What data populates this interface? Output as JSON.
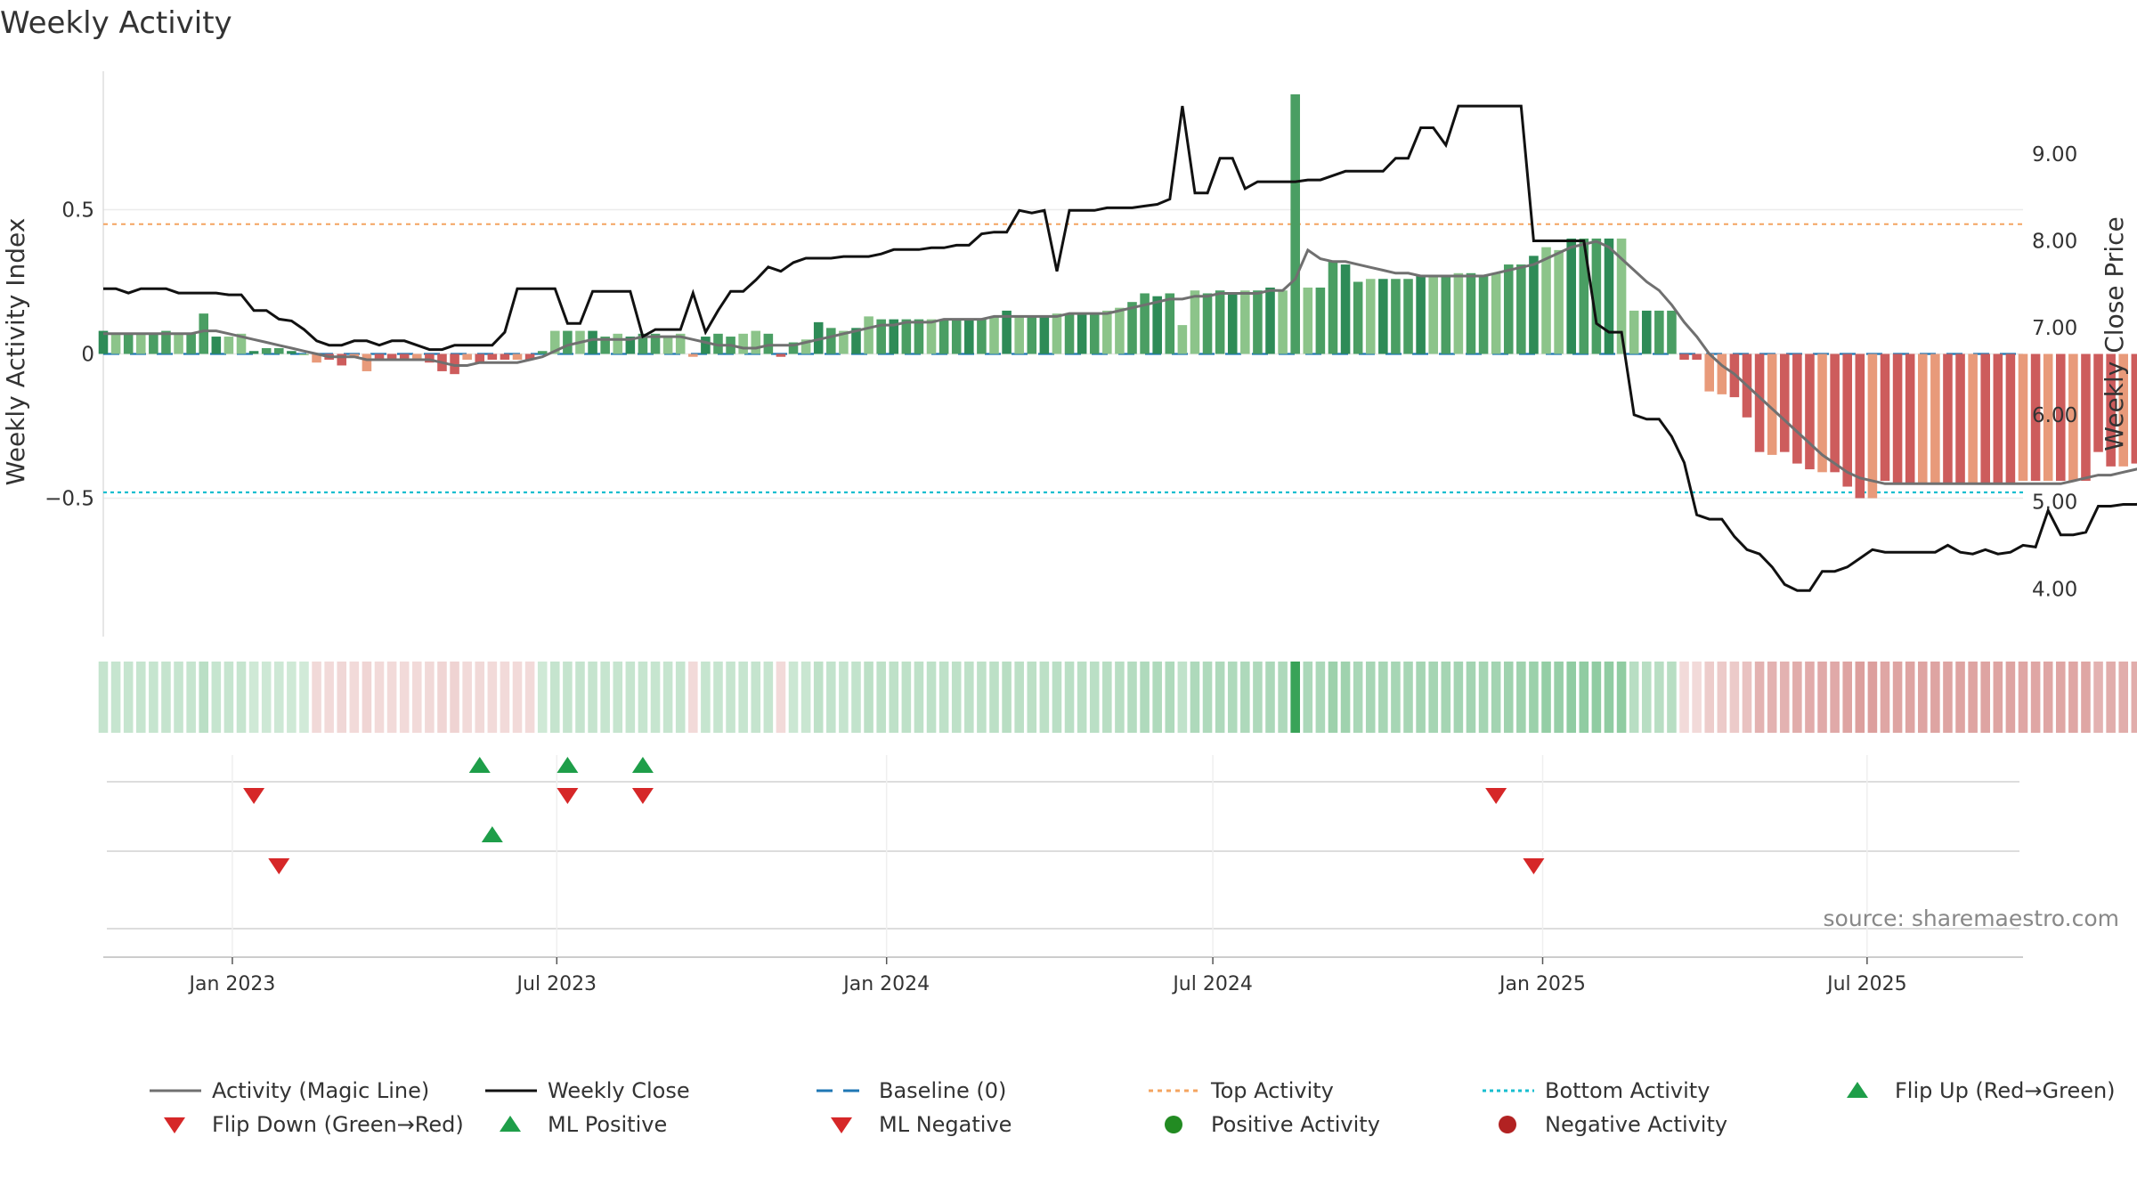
{
  "chart_data": {
    "type": "bar",
    "title": "Weekly Activity",
    "ylabel_left": "Weekly Activity Index",
    "ylabel_right": "Weekly Close Price",
    "source": "source: sharemaestro.com",
    "x_range": [
      "2022-10-21",
      "2025-09-26"
    ],
    "ylim_left": [
      -0.98,
      0.98
    ],
    "ylim_right": [
      3.45,
      9.95
    ],
    "left_ticks": [
      {
        "v": 0.5,
        "label": "0.5"
      },
      {
        "v": 0,
        "label": "0"
      },
      {
        "v": -0.5,
        "label": "−0.5"
      }
    ],
    "right_ticks": [
      {
        "v": 9,
        "label": "9.00"
      },
      {
        "v": 8,
        "label": "8.00"
      },
      {
        "v": 7,
        "label": "7.00"
      },
      {
        "v": 6,
        "label": "6.00"
      },
      {
        "v": 5,
        "label": "5.00"
      },
      {
        "v": 4,
        "label": "4.00"
      }
    ],
    "x_ticks": [
      {
        "date": "2023-01-01",
        "label": "Jan 2023"
      },
      {
        "date": "2023-07-01",
        "label": "Jul 2023"
      },
      {
        "date": "2024-01-01",
        "label": "Jan 2024"
      },
      {
        "date": "2024-07-01",
        "label": "Jul 2024"
      },
      {
        "date": "2025-01-01",
        "label": "Jan 2025"
      },
      {
        "date": "2025-07-01",
        "label": "Jul 2025"
      }
    ],
    "top_activity": 0.45,
    "bottom_activity": -0.48,
    "baseline": 0,
    "colors": {
      "pos_dark": "#2e8b57",
      "pos_mid": "#4a9e63",
      "pos_light": "#8cc48a",
      "neg_dark": "#cd5c5c",
      "neg_light": "#e89a7a",
      "magic_line": "#707070",
      "close": "#111111",
      "baseline": "#1f77b4",
      "top": "#f4a460",
      "bottom": "#17becf",
      "marker_up": "#1e9e49",
      "marker_down": "#d62728",
      "neg_activity": "#b22222",
      "pos_activity": "#228b22"
    },
    "start_date": "2022-10-21",
    "activity": [
      0.08,
      0.07,
      0.07,
      0.07,
      0.07,
      0.08,
      0.07,
      0.07,
      0.14,
      0.06,
      0.06,
      0.07,
      0.01,
      0.02,
      0.02,
      0.01,
      0.0,
      -0.03,
      -0.02,
      -0.04,
      -0.01,
      -0.06,
      -0.02,
      -0.02,
      -0.02,
      -0.02,
      -0.03,
      -0.06,
      -0.07,
      -0.02,
      -0.03,
      -0.02,
      -0.02,
      -0.02,
      -0.02,
      0.01,
      0.08,
      0.08,
      0.08,
      0.08,
      0.06,
      0.07,
      0.06,
      0.07,
      0.07,
      0.06,
      0.07,
      -0.01,
      0.06,
      0.07,
      0.06,
      0.07,
      0.08,
      0.07,
      -0.01,
      0.04,
      0.05,
      0.11,
      0.09,
      0.08,
      0.09,
      0.13,
      0.12,
      0.12,
      0.12,
      0.12,
      0.12,
      0.12,
      0.12,
      0.12,
      0.12,
      0.13,
      0.15,
      0.13,
      0.13,
      0.13,
      0.14,
      0.14,
      0.14,
      0.14,
      0.15,
      0.16,
      0.18,
      0.21,
      0.2,
      0.21,
      0.1,
      0.22,
      0.21,
      0.22,
      0.21,
      0.22,
      0.22,
      0.23,
      0.22,
      0.9,
      0.23,
      0.23,
      0.32,
      0.31,
      0.25,
      0.26,
      0.26,
      0.26,
      0.26,
      0.27,
      0.27,
      0.27,
      0.28,
      0.28,
      0.27,
      0.28,
      0.31,
      0.31,
      0.34,
      0.37,
      0.36,
      0.4,
      0.4,
      0.4,
      0.4,
      0.4,
      0.15,
      0.15,
      0.15,
      0.15,
      -0.02,
      -0.02,
      -0.13,
      -0.14,
      -0.15,
      -0.22,
      -0.34,
      -0.35,
      -0.34,
      -0.38,
      -0.4,
      -0.41,
      -0.41,
      -0.46,
      -0.5,
      -0.5,
      -0.44,
      -0.45,
      -0.45,
      -0.45,
      -0.45,
      -0.45,
      -0.45,
      -0.45,
      -0.45,
      -0.45,
      -0.45,
      -0.44,
      -0.44,
      -0.44,
      -0.44,
      -0.44,
      -0.44,
      -0.34,
      -0.39,
      -0.39,
      -0.38,
      -0.37,
      -0.36,
      -0.35,
      -0.34,
      -0.33,
      -0.32,
      -0.32
    ],
    "magic_line": [
      0.07,
      0.07,
      0.07,
      0.07,
      0.07,
      0.07,
      0.07,
      0.07,
      0.08,
      0.08,
      0.07,
      0.06,
      0.05,
      0.04,
      0.03,
      0.02,
      0.01,
      0.0,
      -0.01,
      -0.01,
      -0.01,
      -0.02,
      -0.02,
      -0.02,
      -0.02,
      -0.02,
      -0.02,
      -0.03,
      -0.04,
      -0.04,
      -0.03,
      -0.03,
      -0.03,
      -0.03,
      -0.02,
      -0.01,
      0.01,
      0.03,
      0.04,
      0.05,
      0.05,
      0.05,
      0.05,
      0.06,
      0.06,
      0.06,
      0.06,
      0.05,
      0.04,
      0.03,
      0.03,
      0.02,
      0.02,
      0.03,
      0.03,
      0.03,
      0.04,
      0.05,
      0.06,
      0.07,
      0.08,
      0.09,
      0.1,
      0.1,
      0.11,
      0.11,
      0.11,
      0.12,
      0.12,
      0.12,
      0.12,
      0.13,
      0.13,
      0.13,
      0.13,
      0.13,
      0.13,
      0.14,
      0.14,
      0.14,
      0.14,
      0.15,
      0.16,
      0.17,
      0.18,
      0.19,
      0.19,
      0.2,
      0.2,
      0.21,
      0.21,
      0.21,
      0.21,
      0.22,
      0.22,
      0.26,
      0.36,
      0.33,
      0.32,
      0.32,
      0.31,
      0.3,
      0.29,
      0.28,
      0.28,
      0.27,
      0.27,
      0.27,
      0.27,
      0.27,
      0.27,
      0.28,
      0.29,
      0.3,
      0.31,
      0.33,
      0.35,
      0.37,
      0.38,
      0.39,
      0.37,
      0.33,
      0.29,
      0.25,
      0.22,
      0.17,
      0.11,
      0.06,
      0.0,
      -0.04,
      -0.07,
      -0.11,
      -0.15,
      -0.19,
      -0.23,
      -0.27,
      -0.31,
      -0.35,
      -0.38,
      -0.41,
      -0.43,
      -0.44,
      -0.45,
      -0.45,
      -0.45,
      -0.45,
      -0.45,
      -0.45,
      -0.45,
      -0.45,
      -0.45,
      -0.45,
      -0.45,
      -0.45,
      -0.45,
      -0.45,
      -0.45,
      -0.44,
      -0.43,
      -0.42,
      -0.42,
      -0.41,
      -0.4,
      -0.39,
      -0.38,
      -0.37,
      -0.36,
      -0.35,
      -0.34,
      -0.33
    ],
    "close": [
      7.45,
      7.45,
      7.4,
      7.45,
      7.45,
      7.45,
      7.4,
      7.4,
      7.4,
      7.4,
      7.38,
      7.38,
      7.2,
      7.2,
      7.1,
      7.08,
      6.98,
      6.85,
      6.8,
      6.8,
      6.85,
      6.85,
      6.8,
      6.85,
      6.85,
      6.8,
      6.75,
      6.75,
      6.8,
      6.8,
      6.8,
      6.8,
      6.95,
      7.45,
      7.45,
      7.45,
      7.45,
      7.05,
      7.05,
      7.42,
      7.42,
      7.42,
      7.42,
      6.9,
      6.98,
      6.98,
      6.98,
      7.4,
      6.95,
      7.2,
      7.42,
      7.42,
      7.55,
      7.7,
      7.65,
      7.75,
      7.8,
      7.8,
      7.8,
      7.82,
      7.82,
      7.82,
      7.85,
      7.9,
      7.9,
      7.9,
      7.92,
      7.92,
      7.95,
      7.95,
      8.08,
      8.1,
      8.1,
      8.35,
      8.32,
      8.35,
      7.65,
      8.35,
      8.35,
      8.35,
      8.38,
      8.38,
      8.38,
      8.4,
      8.42,
      8.48,
      9.55,
      8.55,
      8.55,
      8.95,
      8.95,
      8.6,
      8.68,
      8.68,
      8.68,
      8.68,
      8.7,
      8.7,
      8.75,
      8.8,
      8.8,
      8.8,
      8.8,
      8.95,
      8.95,
      9.3,
      9.3,
      9.1,
      9.55,
      9.55,
      9.55,
      9.55,
      9.55,
      9.55,
      8.0,
      8.0,
      8.0,
      8.0,
      8.0,
      7.05,
      6.95,
      6.95,
      6.0,
      5.95,
      5.95,
      5.75,
      5.45,
      4.85,
      4.8,
      4.8,
      4.6,
      4.45,
      4.4,
      4.25,
      4.05,
      3.98,
      3.98,
      4.2,
      4.2,
      4.25,
      4.35,
      4.45,
      4.42,
      4.42,
      4.42,
      4.42,
      4.42,
      4.5,
      4.42,
      4.4,
      4.45,
      4.4,
      4.42,
      4.5,
      4.48,
      4.9,
      4.62,
      4.62,
      4.65,
      4.95,
      4.95,
      4.97,
      4.97,
      4.98,
      4.98,
      4.98,
      4.98
    ],
    "flips_up": [
      "2023-05-19",
      "2023-07-07",
      "2023-08-18"
    ],
    "flips_down": [
      "2023-01-13",
      "2023-07-07",
      "2023-08-18",
      "2024-12-06"
    ],
    "ml_positive": [
      "2023-05-26"
    ],
    "ml_negative": [
      "2023-01-27",
      "2024-12-27"
    ],
    "legend": [
      "Activity (Magic Line)",
      "Weekly Close",
      "Baseline (0)",
      "Top Activity",
      "Bottom Activity",
      "Flip Up (Red→Green)",
      "Flip Down (Green→Red)",
      "ML Positive",
      "ML Negative",
      "Positive Activity",
      "Negative Activity"
    ]
  }
}
